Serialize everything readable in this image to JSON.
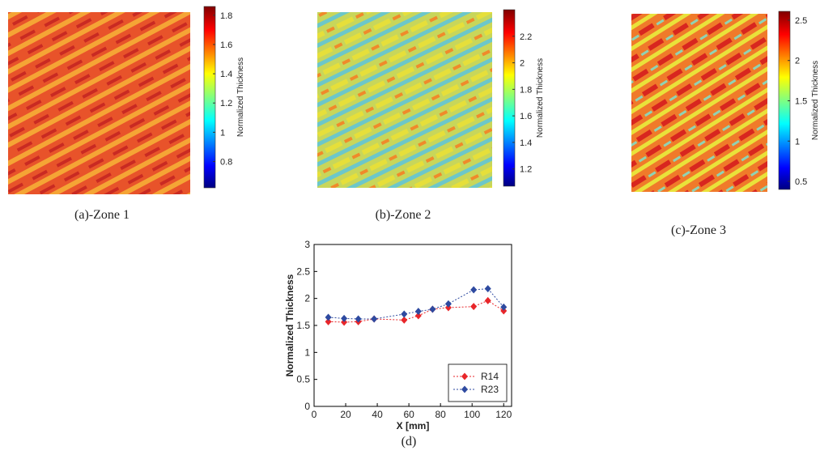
{
  "chart_data": [
    {
      "type": "heatmap",
      "caption": "(a)-Zone 1",
      "colorbar_label": "Normalized Thickness",
      "clim": [
        0.62,
        1.86
      ],
      "cticks": [
        0.8,
        1,
        1.2,
        1.4,
        1.6,
        1.8
      ]
    },
    {
      "type": "heatmap",
      "caption": "(b)-Zone 2",
      "colorbar_label": "Normalized Thickness",
      "clim": [
        1.07,
        2.4
      ],
      "cticks": [
        1.2,
        1.4,
        1.6,
        1.8,
        2,
        2.2
      ]
    },
    {
      "type": "heatmap",
      "caption": "(c)-Zone 3",
      "colorbar_label": "Normalized Thickness",
      "clim": [
        0.4,
        2.61
      ],
      "cticks": [
        0.5,
        1,
        1.5,
        2,
        2.5
      ]
    },
    {
      "type": "line",
      "caption": "(d)",
      "xlabel": "X [mm]",
      "ylabel": "Normalized Thickness",
      "x": [
        9,
        19,
        28,
        38,
        57,
        66,
        75,
        85,
        101,
        110,
        120
      ],
      "series": [
        {
          "name": "R14",
          "color": "#e8262a",
          "values": [
            1.57,
            1.56,
            1.57,
            1.62,
            1.6,
            1.68,
            1.8,
            1.83,
            1.85,
            1.96,
            1.77
          ]
        },
        {
          "name": "R23",
          "color": "#2e4aa0",
          "values": [
            1.65,
            1.63,
            1.62,
            1.62,
            1.71,
            1.76,
            1.8,
            1.9,
            2.16,
            2.18,
            1.84
          ]
        }
      ],
      "xlim": [
        0,
        125
      ],
      "ylim": [
        0,
        3
      ],
      "xticks": [
        0,
        20,
        40,
        60,
        80,
        100,
        120
      ],
      "yticks": [
        0,
        0.5,
        1,
        1.5,
        2,
        2.5,
        3
      ],
      "legend": "lower-right"
    }
  ]
}
